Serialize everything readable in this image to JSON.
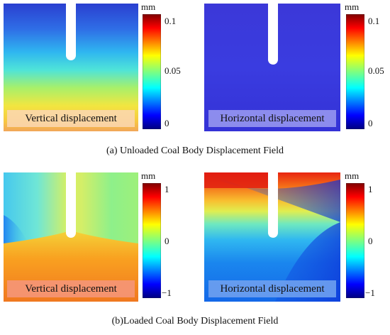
{
  "top": {
    "left_panel": {
      "label": "Vertical displacement"
    },
    "right_panel": {
      "label": "Horizontal displacement"
    },
    "colorbar": {
      "unit": "mm",
      "ticks": [
        "0.1",
        "0.05",
        "0"
      ],
      "range": [
        0,
        0.1
      ]
    },
    "caption": "(a) Unloaded Coal Body Displacement Field"
  },
  "bottom": {
    "left_panel": {
      "label": "Vertical displacement"
    },
    "right_panel": {
      "label": "Horizontal displacement"
    },
    "colorbar": {
      "unit": "mm",
      "ticks": [
        "1",
        "0",
        "−1"
      ],
      "range": [
        -1,
        1
      ]
    },
    "caption": "(b)Loaded Coal Body Displacement Field"
  },
  "colors": {
    "jet": [
      "#00007f",
      "#0000ff",
      "#007fff",
      "#00ffff",
      "#7fff7f",
      "#ffff00",
      "#ff7f00",
      "#ff0000",
      "#7f0000"
    ]
  }
}
